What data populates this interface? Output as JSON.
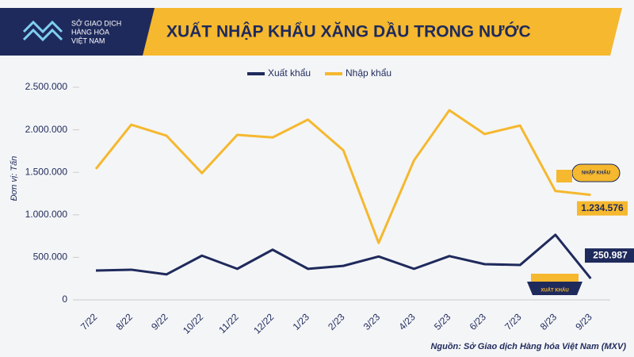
{
  "header": {
    "logo_text_1": "SỞ GIAO DỊCH",
    "logo_text_2": "HÀNG HÓA",
    "logo_text_3": "VIỆT NAM"
  },
  "chart_data": {
    "type": "line",
    "title": "XUẤT NHẬP KHẨU XĂNG DẦU TRONG NƯỚC",
    "y_label": "Đơn vị: Tấn",
    "source": "Nguồn: Sở Giao dịch Hàng hóa Việt Nam (MXV)",
    "icon_labels": [
      "NHẬP KHẨU",
      "XUẤT KHẨU"
    ],
    "categories": [
      "7/22",
      "8/22",
      "9/22",
      "10/22",
      "11/22",
      "12/22",
      "1/23",
      "2/23",
      "3/23",
      "4/23",
      "5/23",
      "6/23",
      "7/23",
      "8/23",
      "9/23"
    ],
    "series": [
      {
        "name": "Xuất khẩu",
        "color": "#1f2a5c",
        "values": [
          345000,
          355000,
          300000,
          520000,
          365000,
          590000,
          365000,
          400000,
          510000,
          365000,
          515000,
          420000,
          410000,
          765000,
          250987
        ],
        "value_labels": [
          null,
          null,
          null,
          null,
          null,
          null,
          null,
          null,
          null,
          null,
          null,
          null,
          null,
          null,
          "250.987"
        ]
      },
      {
        "name": "Nhập khẩu",
        "color": "#f5b82e",
        "values": [
          1540000,
          2060000,
          1930000,
          1490000,
          1940000,
          1910000,
          2120000,
          1760000,
          670000,
          1640000,
          2230000,
          1950000,
          2050000,
          1280000,
          1234576
        ],
        "value_labels": [
          null,
          null,
          null,
          null,
          null,
          null,
          null,
          null,
          null,
          null,
          null,
          null,
          null,
          null,
          "1.234.576"
        ]
      }
    ],
    "ylim": [
      0,
      2500000
    ],
    "yticks": [
      0,
      {
        "value": 500000,
        "label": "500.000"
      },
      {
        "value": 1000000,
        "label": "1.000.000"
      },
      {
        "value": 1500000,
        "label": "1.500.000"
      },
      {
        "value": 2000000,
        "label": "2.000.000"
      },
      {
        "value": 2500000,
        "label": "2.500.000"
      }
    ]
  }
}
